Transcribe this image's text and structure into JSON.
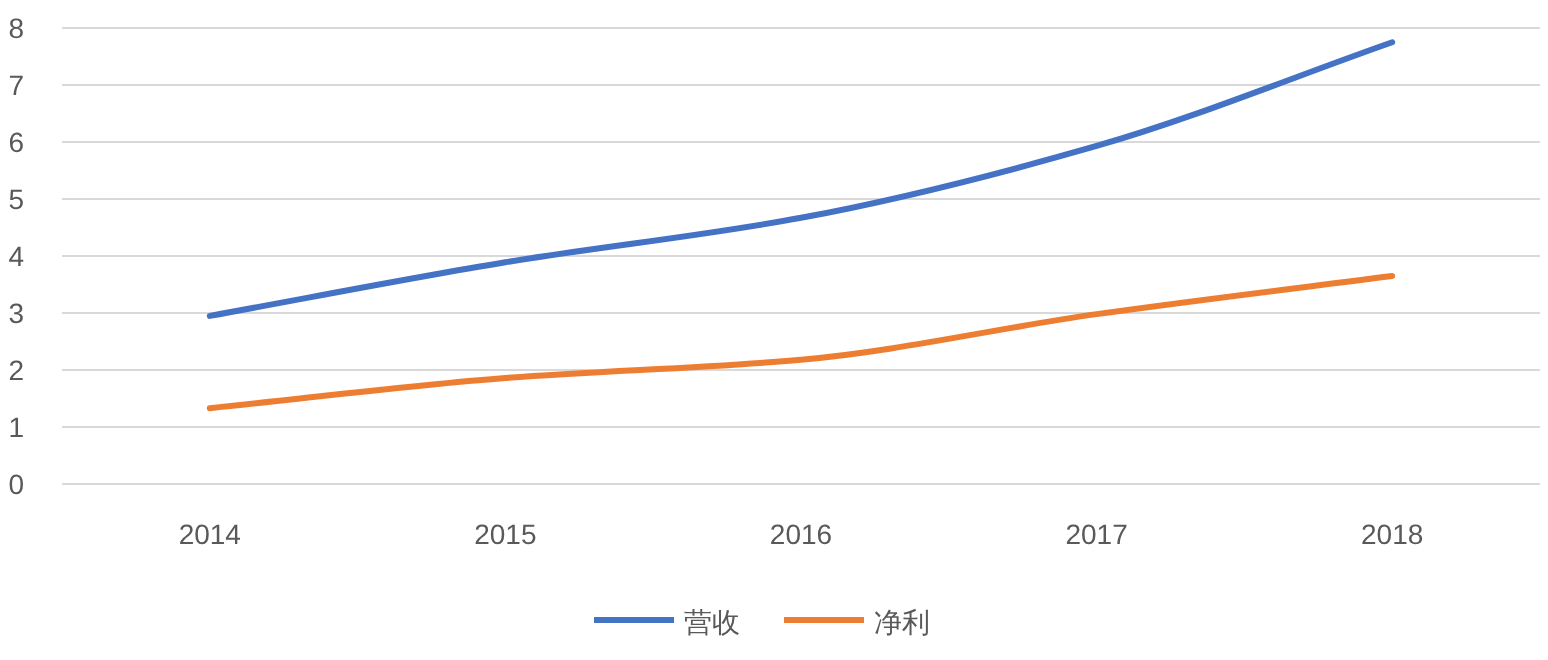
{
  "chart_data": {
    "type": "line",
    "categories": [
      "2014",
      "2015",
      "2016",
      "2017",
      "2018"
    ],
    "series": [
      {
        "name": "营收",
        "color": "#4472c4",
        "values": [
          2.95,
          3.89,
          4.67,
          5.93,
          7.75
        ]
      },
      {
        "name": "净利",
        "color": "#ed7d31",
        "values": [
          1.33,
          1.86,
          2.18,
          2.98,
          3.65
        ]
      }
    ],
    "ylim": [
      0,
      8
    ],
    "yticks": [
      0,
      1,
      2,
      3,
      4,
      5,
      6,
      7,
      8
    ],
    "grid": "y",
    "legend": "bottom",
    "marker": "none",
    "line_style": "solid"
  }
}
